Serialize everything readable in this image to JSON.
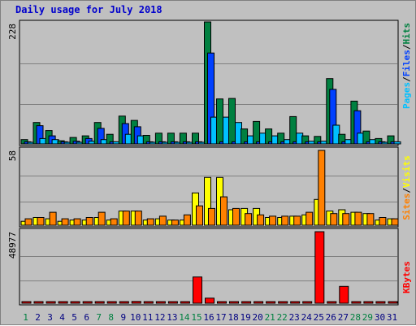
{
  "title": "Daily usage for July 2018",
  "chart_data": [
    {
      "type": "bar",
      "panel": "hits-files-pages",
      "categories": [
        "1",
        "2",
        "3",
        "4",
        "5",
        "6",
        "7",
        "8",
        "9",
        "10",
        "11",
        "12",
        "13",
        "14",
        "15",
        "16",
        "17",
        "18",
        "19",
        "20",
        "21",
        "22",
        "23",
        "24",
        "25",
        "26",
        "27",
        "28",
        "29",
        "30",
        "31"
      ],
      "ymax_label": "228",
      "ylim": [
        0,
        228
      ],
      "series": [
        {
          "name": "Hits",
          "color": "#008040",
          "values": [
            8,
            40,
            25,
            6,
            12,
            15,
            40,
            18,
            52,
            44,
            16,
            20,
            20,
            20,
            20,
            228,
            84,
            85,
            28,
            42,
            28,
            20,
            51,
            15,
            14,
            122,
            18,
            80,
            24,
            10,
            15
          ]
        },
        {
          "name": "Files",
          "color": "#0040ff",
          "values": [
            4,
            34,
            15,
            4,
            5,
            10,
            29,
            4,
            38,
            32,
            4,
            4,
            4,
            4,
            4,
            170,
            4,
            4,
            4,
            4,
            4,
            4,
            4,
            4,
            4,
            102,
            4,
            62,
            4,
            4,
            4
          ]
        },
        {
          "name": "Pages",
          "color": "#00c0ff",
          "values": [
            3,
            10,
            8,
            3,
            3,
            5,
            8,
            4,
            18,
            15,
            3,
            3,
            3,
            3,
            3,
            50,
            50,
            40,
            15,
            20,
            15,
            8,
            20,
            5,
            5,
            35,
            8,
            20,
            8,
            3,
            4
          ]
        }
      ]
    },
    {
      "type": "bar",
      "panel": "visits-sites",
      "categories": [
        "1",
        "2",
        "3",
        "4",
        "5",
        "6",
        "7",
        "8",
        "9",
        "10",
        "11",
        "12",
        "13",
        "14",
        "15",
        "16",
        "17",
        "18",
        "19",
        "20",
        "21",
        "22",
        "23",
        "24",
        "25",
        "26",
        "27",
        "28",
        "29",
        "30",
        "31"
      ],
      "ymax_label": "58",
      "ylim": [
        0,
        58
      ],
      "series": [
        {
          "name": "Visits",
          "color": "#ffff00",
          "values": [
            3,
            6,
            5,
            3,
            4,
            4,
            6,
            4,
            11,
            11,
            4,
            5,
            4,
            4,
            25,
            37,
            37,
            12,
            13,
            13,
            6,
            6,
            7,
            8,
            20,
            11,
            12,
            10,
            9,
            4,
            5
          ]
        },
        {
          "name": "Sites",
          "color": "#ff8000",
          "values": [
            5,
            6,
            10,
            5,
            5,
            6,
            10,
            5,
            11,
            11,
            5,
            7,
            4,
            8,
            15,
            13,
            22,
            13,
            9,
            8,
            7,
            7,
            7,
            10,
            58,
            9,
            9,
            10,
            9,
            6,
            5
          ]
        }
      ]
    },
    {
      "type": "bar",
      "panel": "kbytes",
      "categories": [
        "1",
        "2",
        "3",
        "4",
        "5",
        "6",
        "7",
        "8",
        "9",
        "10",
        "11",
        "12",
        "13",
        "14",
        "15",
        "16",
        "17",
        "18",
        "19",
        "20",
        "21",
        "22",
        "23",
        "24",
        "25",
        "26",
        "27",
        "28",
        "29",
        "30",
        "31"
      ],
      "ymax_label": "48977",
      "ylim": [
        0,
        48977
      ],
      "series": [
        {
          "name": "KBytes",
          "color": "#ff0000",
          "values": [
            150,
            150,
            150,
            150,
            150,
            150,
            150,
            150,
            150,
            1200,
            150,
            150,
            150,
            150,
            18000,
            3500,
            150,
            150,
            150,
            150,
            150,
            150,
            150,
            150,
            48977,
            150,
            11500,
            150,
            150,
            150,
            150
          ]
        }
      ]
    }
  ],
  "x_axis": {
    "labels": [
      "1",
      "2",
      "3",
      "4",
      "5",
      "6",
      "7",
      "8",
      "9",
      "10",
      "11",
      "12",
      "13",
      "14",
      "15",
      "16",
      "17",
      "18",
      "19",
      "20",
      "21",
      "22",
      "23",
      "24",
      "25",
      "26",
      "27",
      "28",
      "29",
      "30",
      "31"
    ],
    "weekend_color": "#008040",
    "weekday_color": "#000080",
    "weekend_days": [
      "1",
      "7",
      "8",
      "14",
      "15",
      "21",
      "22",
      "28",
      "29"
    ]
  },
  "legends": {
    "top": {
      "pages": "Pages",
      "files": "Files",
      "hits": "Hits",
      "sep": "/"
    },
    "middle": {
      "sites": "Sites",
      "visits": "Visits",
      "sep": "/"
    },
    "bottom": {
      "kbytes": "KBytes"
    }
  }
}
